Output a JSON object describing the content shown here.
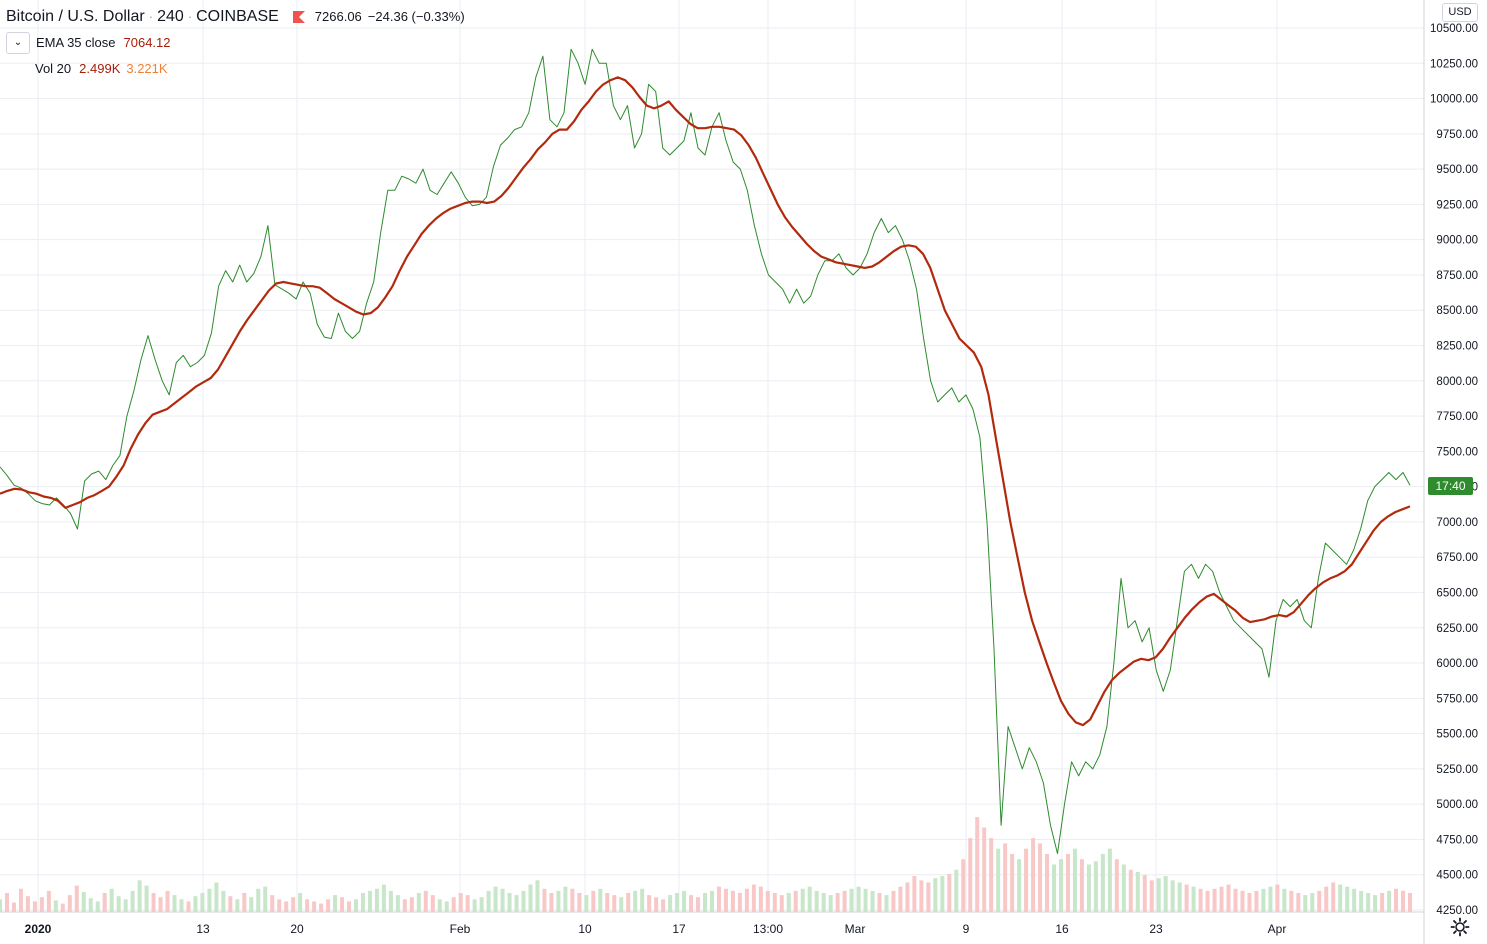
{
  "header": {
    "symbol": "Bitcoin / U.S. Dollar",
    "interval": "240",
    "exchange": "COINBASE",
    "last_price": "7266.06",
    "change": "−24.36 (−0.33%)",
    "ema_label": "EMA 35 close",
    "ema_value": "7064.12",
    "vol_label": "Vol 20",
    "vol_value_1": "2.499K",
    "vol_value_2": "3.221K",
    "collapse_icon": "chevron-down-icon"
  },
  "price_axis": {
    "currency": "USD",
    "current_tag": "17:40",
    "ticks": [
      "10500.00",
      "10250.00",
      "10000.00",
      "9750.00",
      "9500.00",
      "9250.00",
      "9000.00",
      "8750.00",
      "8500.00",
      "8250.00",
      "8000.00",
      "7750.00",
      "7500.00",
      "7250.00",
      "7000.00",
      "6750.00",
      "6500.00",
      "6250.00",
      "6000.00",
      "5750.00",
      "5500.00",
      "5250.00",
      "5000.00",
      "4750.00",
      "4500.00",
      "4250.00"
    ]
  },
  "time_axis": {
    "labels": [
      "2020",
      "13",
      "20",
      "Feb",
      "10",
      "17",
      "13:00",
      "Mar",
      "9",
      "16",
      "23",
      "Apr"
    ]
  },
  "colors": {
    "price_line": "#2e8b2e",
    "ema_line": "#b22a0d",
    "grid": "#ebeef3",
    "volume_up": "#c8e6c9",
    "volume_down": "#f8c8c8",
    "tag_bg": "#2e8b2e"
  },
  "settings_icon": "gear-icon",
  "chart_data": {
    "type": "line",
    "title": "Bitcoin / U.S. Dollar · 240 · COINBASE",
    "ylim": [
      4250,
      10600
    ],
    "y_scale": "linear",
    "grid": true,
    "series": [
      {
        "name": "Bitcoin / U.S. Dollar",
        "x_labels_note": "",
        "values": [
          7390,
          7330,
          7260,
          7240,
          7200,
          7150,
          7130,
          7120,
          7170,
          7120,
          7060,
          6950,
          7290,
          7340,
          7360,
          7300,
          7400,
          7470,
          7750,
          7930,
          8150,
          8320,
          8150,
          8000,
          7900,
          8130,
          8180,
          8100,
          8130,
          8180,
          8340,
          8670,
          8780,
          8700,
          8820,
          8700,
          8760,
          8880,
          9100,
          8680,
          8650,
          8620,
          8580,
          8700,
          8620,
          8400,
          8310,
          8300,
          8480,
          8350,
          8300,
          8350,
          8550,
          8700,
          9050,
          9350,
          9350,
          9450,
          9430,
          9400,
          9500,
          9350,
          9320,
          9400,
          9480,
          9400,
          9300,
          9240,
          9250,
          9300,
          9520,
          9670,
          9720,
          9780,
          9800,
          9900,
          10150,
          10300,
          9850,
          9800,
          9900,
          10350,
          10250,
          10100,
          10350,
          10250,
          10250,
          9950,
          9850,
          9950,
          9650,
          9750,
          10100,
          10050,
          9650,
          9600,
          9650,
          9700,
          9900,
          9650,
          9600,
          9800,
          9900,
          9700,
          9550,
          9500,
          9350,
          9100,
          8900,
          8750,
          8700,
          8650,
          8550,
          8650,
          8550,
          8600,
          8750,
          8850,
          8850,
          8900,
          8800,
          8750,
          8800,
          8900,
          9050,
          9150,
          9050,
          9100,
          9000,
          8850,
          8650,
          8300,
          8000,
          7850,
          7900,
          7950,
          7850,
          7900,
          7800,
          7600,
          7000,
          6100,
          4850,
          5550,
          5400,
          5250,
          5400,
          5300,
          5150,
          4850,
          4650,
          5000,
          5300,
          5200,
          5300,
          5250,
          5350,
          5550,
          6000,
          6600,
          6250,
          6300,
          6150,
          6250,
          5950,
          5800,
          5950,
          6300,
          6650,
          6700,
          6600,
          6700,
          6650,
          6500,
          6400,
          6300,
          6250,
          6200,
          6150,
          6100,
          5900,
          6300,
          6450,
          6400,
          6450,
          6300,
          6250,
          6600,
          6850,
          6800,
          6750,
          6700,
          6800,
          6950,
          7150,
          7250,
          7300,
          7350,
          7300,
          7350,
          7260
        ]
      },
      {
        "name": "EMA 35 close",
        "values": [
          7200,
          7220,
          7235,
          7230,
          7210,
          7200,
          7180,
          7170,
          7150,
          7100,
          7120,
          7140,
          7170,
          7190,
          7220,
          7250,
          7320,
          7400,
          7520,
          7620,
          7700,
          7760,
          7780,
          7800,
          7840,
          7880,
          7920,
          7960,
          7990,
          8020,
          8080,
          8170,
          8260,
          8350,
          8430,
          8500,
          8570,
          8640,
          8690,
          8700,
          8690,
          8680,
          8670,
          8670,
          8660,
          8620,
          8580,
          8550,
          8520,
          8490,
          8470,
          8480,
          8520,
          8590,
          8670,
          8780,
          8880,
          8960,
          9040,
          9100,
          9150,
          9190,
          9220,
          9240,
          9260,
          9270,
          9270,
          9260,
          9270,
          9310,
          9370,
          9440,
          9510,
          9570,
          9640,
          9690,
          9750,
          9780,
          9780,
          9840,
          9920,
          9980,
          10050,
          10100,
          10130,
          10150,
          10130,
          10080,
          10010,
          9950,
          9930,
          9950,
          9980,
          9920,
          9870,
          9820,
          9790,
          9790,
          9800,
          9800,
          9790,
          9780,
          9740,
          9670,
          9580,
          9470,
          9360,
          9250,
          9160,
          9090,
          9030,
          8970,
          8920,
          8880,
          8860,
          8840,
          8830,
          8820,
          8810,
          8800,
          8810,
          8840,
          8880,
          8920,
          8950,
          8960,
          8950,
          8900,
          8800,
          8650,
          8500,
          8400,
          8300,
          8250,
          8200,
          8100,
          7900,
          7600,
          7300,
          7000,
          6750,
          6500,
          6300,
          6150,
          6000,
          5860,
          5730,
          5640,
          5580,
          5560,
          5600,
          5700,
          5800,
          5880,
          5930,
          5970,
          6010,
          6030,
          6020,
          6040,
          6100,
          6180,
          6250,
          6320,
          6380,
          6430,
          6470,
          6490,
          6450,
          6410,
          6370,
          6320,
          6290,
          6300,
          6310,
          6330,
          6340,
          6330,
          6360,
          6420,
          6480,
          6530,
          6570,
          6600,
          6620,
          6650,
          6700,
          6780,
          6860,
          6940,
          7000,
          7040,
          7070,
          7090,
          7110
        ]
      }
    ],
    "volume": {
      "name": "Vol 20",
      "values": [
        12,
        18,
        9,
        22,
        15,
        10,
        14,
        20,
        11,
        8,
        16,
        25,
        19,
        13,
        10,
        18,
        22,
        15,
        12,
        20,
        30,
        25,
        18,
        14,
        20,
        16,
        12,
        10,
        15,
        18,
        22,
        28,
        20,
        15,
        12,
        18,
        14,
        22,
        24,
        16,
        12,
        10,
        14,
        18,
        12,
        10,
        8,
        12,
        16,
        14,
        10,
        12,
        18,
        20,
        22,
        26,
        20,
        16,
        12,
        14,
        18,
        20,
        16,
        12,
        10,
        14,
        18,
        16,
        12,
        14,
        20,
        24,
        22,
        18,
        16,
        20,
        26,
        30,
        22,
        18,
        20,
        24,
        22,
        18,
        16,
        20,
        22,
        18,
        16,
        14,
        18,
        20,
        22,
        16,
        14,
        12,
        16,
        18,
        20,
        16,
        14,
        18,
        20,
        24,
        22,
        20,
        18,
        22,
        26,
        24,
        20,
        18,
        16,
        18,
        20,
        22,
        24,
        20,
        18,
        16,
        18,
        20,
        22,
        24,
        22,
        20,
        18,
        16,
        20,
        24,
        28,
        34,
        30,
        28,
        32,
        34,
        36,
        40,
        50,
        70,
        90,
        80,
        70,
        60,
        65,
        55,
        50,
        60,
        70,
        65,
        55,
        45,
        50,
        55,
        60,
        50,
        45,
        48,
        55,
        60,
        50,
        45,
        40,
        38,
        35,
        30,
        32,
        34,
        30,
        28,
        26,
        24,
        22,
        20,
        22,
        24,
        26,
        22,
        20,
        18,
        20,
        22,
        24,
        26,
        22,
        20,
        18,
        16,
        18,
        20,
        24,
        28,
        26,
        24,
        22,
        20,
        18,
        16,
        18,
        20,
        22,
        20,
        18
      ]
    }
  }
}
